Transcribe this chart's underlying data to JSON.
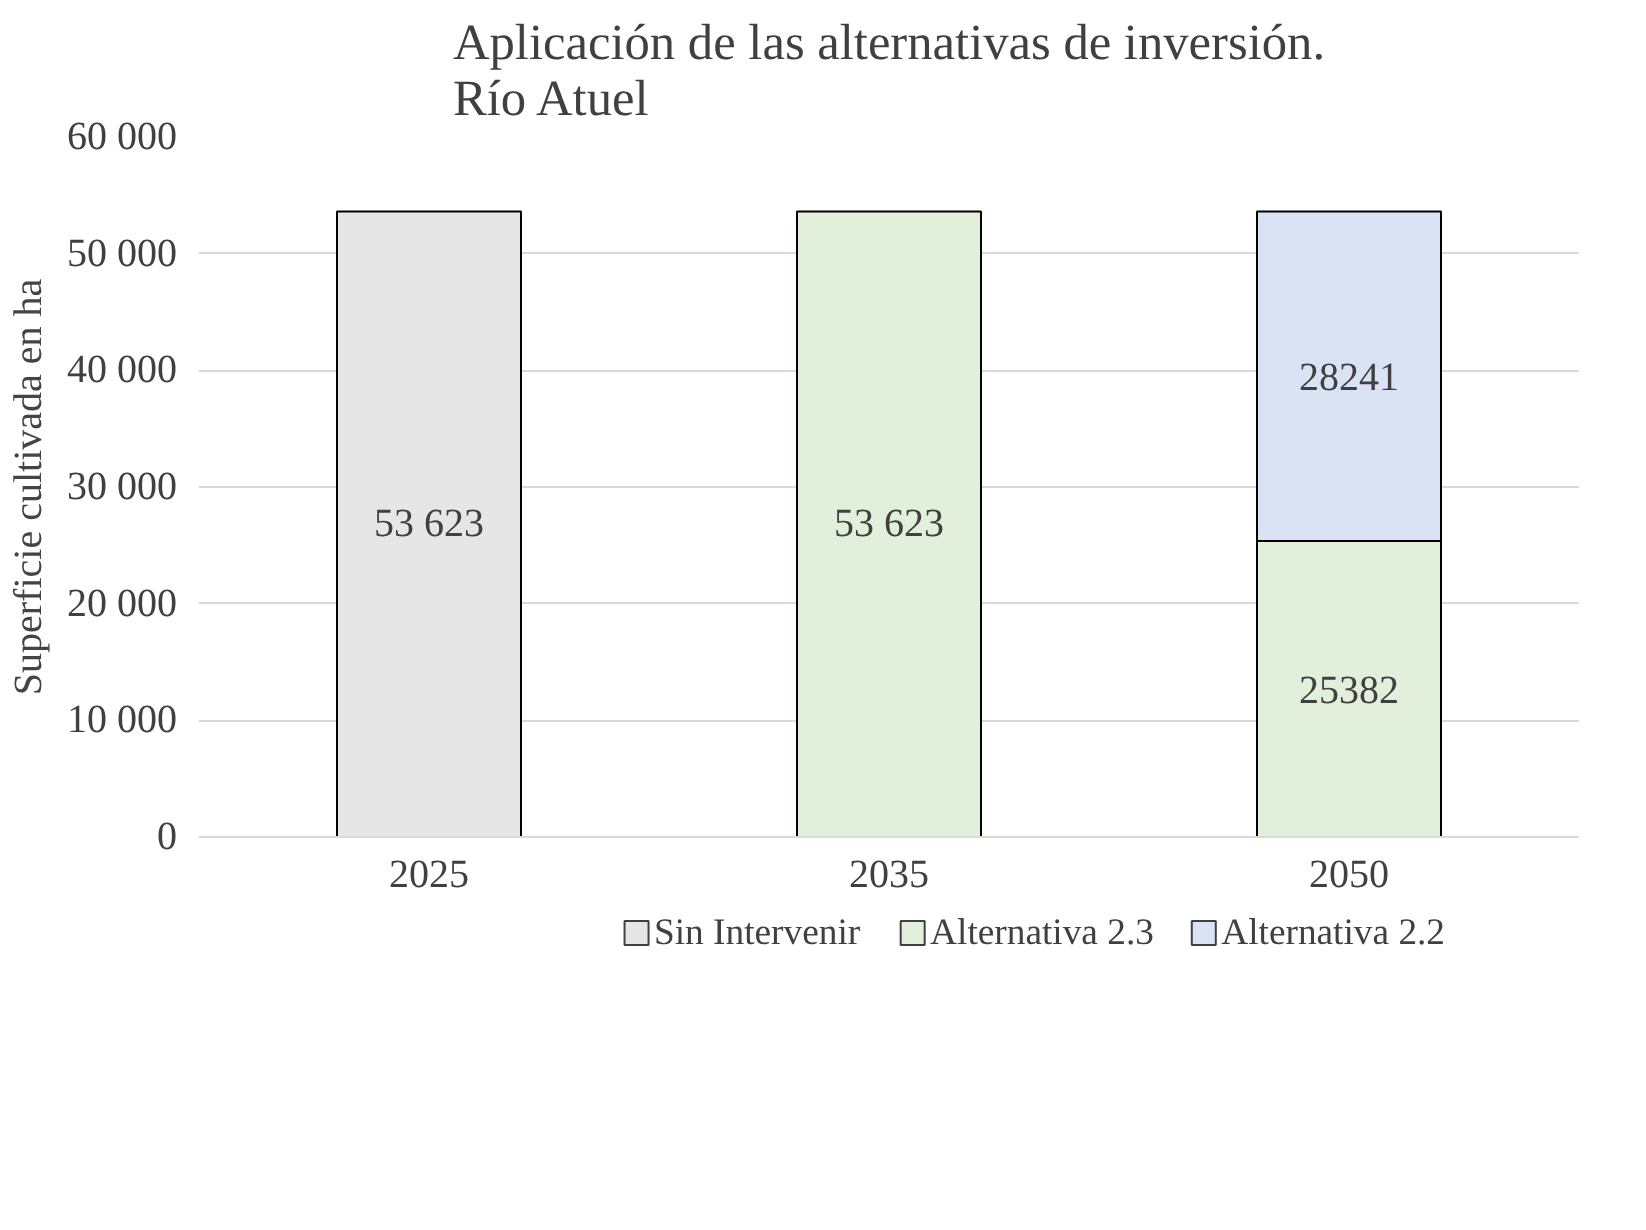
{
  "chart_data": {
    "type": "bar",
    "stacked": true,
    "title": "Aplicación de las alternativas de inversión.\nRío Atuel",
    "ylabel": "Superficie cultivada en ha",
    "categories": [
      "2025",
      "2035",
      "2050"
    ],
    "series": [
      {
        "name": "Sin Intervenir",
        "color": "#e7e6e6",
        "values": [
          53623,
          null,
          null
        ],
        "value_labels": [
          "53 623",
          null,
          null
        ]
      },
      {
        "name": "Alternativa 2.3",
        "color": "#e2efda",
        "values": [
          null,
          53623,
          25382
        ],
        "value_labels": [
          null,
          "53 623",
          "25382"
        ]
      },
      {
        "name": "Alternativa 2.2",
        "color": "#dae3f3",
        "values": [
          null,
          null,
          28241
        ],
        "value_labels": [
          null,
          null,
          "28241"
        ]
      }
    ],
    "ylim": [
      0,
      60000
    ],
    "yticks": [
      {
        "value": 0,
        "label": "0"
      },
      {
        "value": 10000,
        "label": "10 000"
      },
      {
        "value": 20000,
        "label": "20 000"
      },
      {
        "value": 30000,
        "label": "30 000"
      },
      {
        "value": 40000,
        "label": "40 000"
      },
      {
        "value": 50000,
        "label": "50 000"
      },
      {
        "value": 60000,
        "label": "60 000"
      }
    ],
    "grid": "y",
    "legend": "bottom"
  }
}
